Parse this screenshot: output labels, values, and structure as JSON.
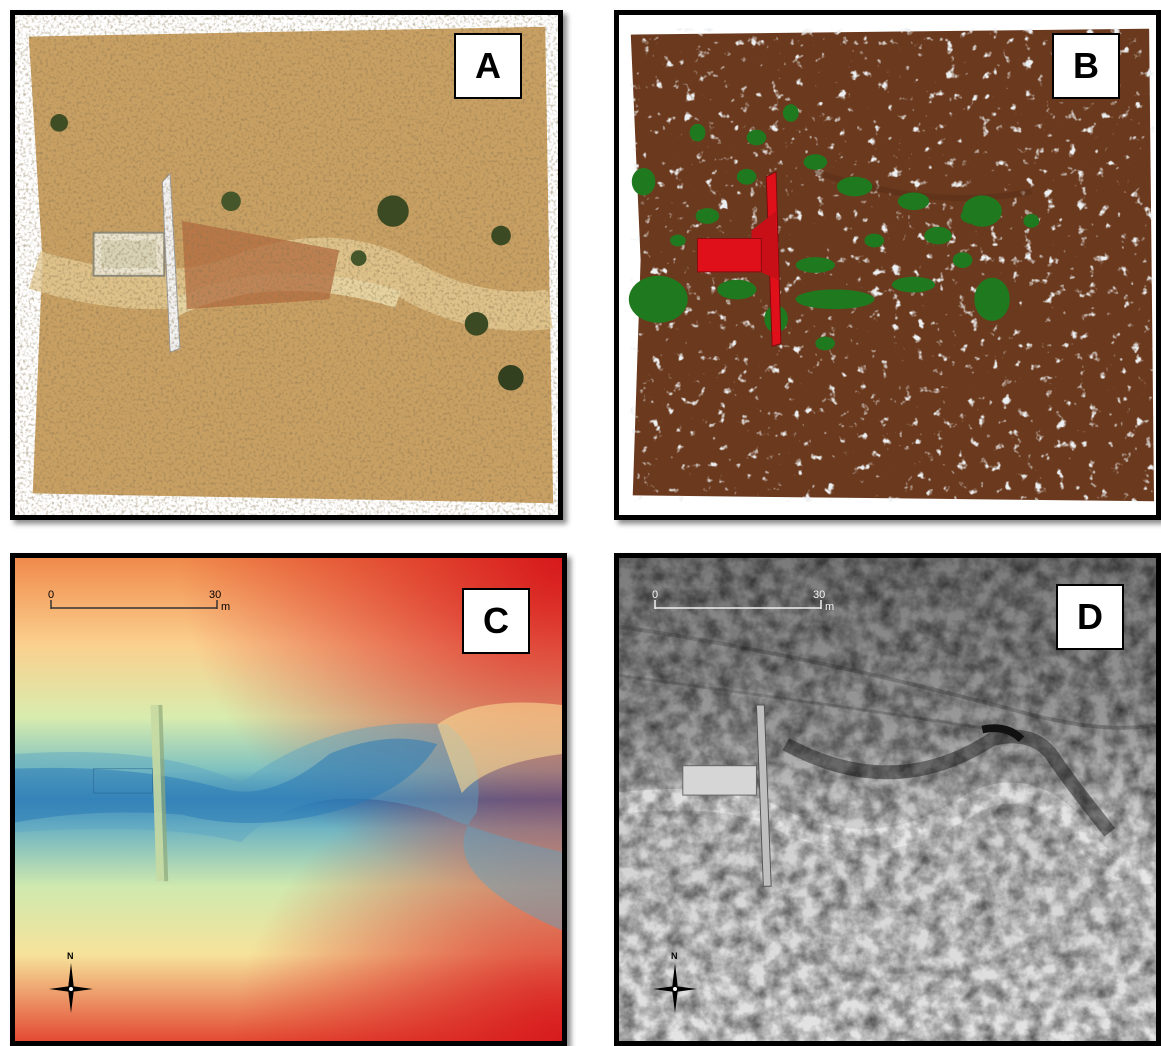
{
  "panels": [
    {
      "id": "A",
      "label": "A",
      "type": "orthophoto"
    },
    {
      "id": "B",
      "label": "B",
      "type": "classified-point-cloud",
      "colors": {
        "ground": "#6b3a1e",
        "vegetation": "#1f7a1f",
        "structure": "#e0101a",
        "unclassified": "#c8ccd0"
      }
    },
    {
      "id": "C",
      "label": "C",
      "type": "elevation-model",
      "colors": {
        "low": "#2c7bb6",
        "mid": "#f2f0b0",
        "high": "#d7191c"
      }
    },
    {
      "id": "D",
      "label": "D",
      "type": "hillshade"
    }
  ],
  "scalebar": {
    "start": "0",
    "end": "30",
    "unit": "m"
  },
  "north_arrow": {
    "label": "N",
    "icon": "north-arrow-icon"
  }
}
